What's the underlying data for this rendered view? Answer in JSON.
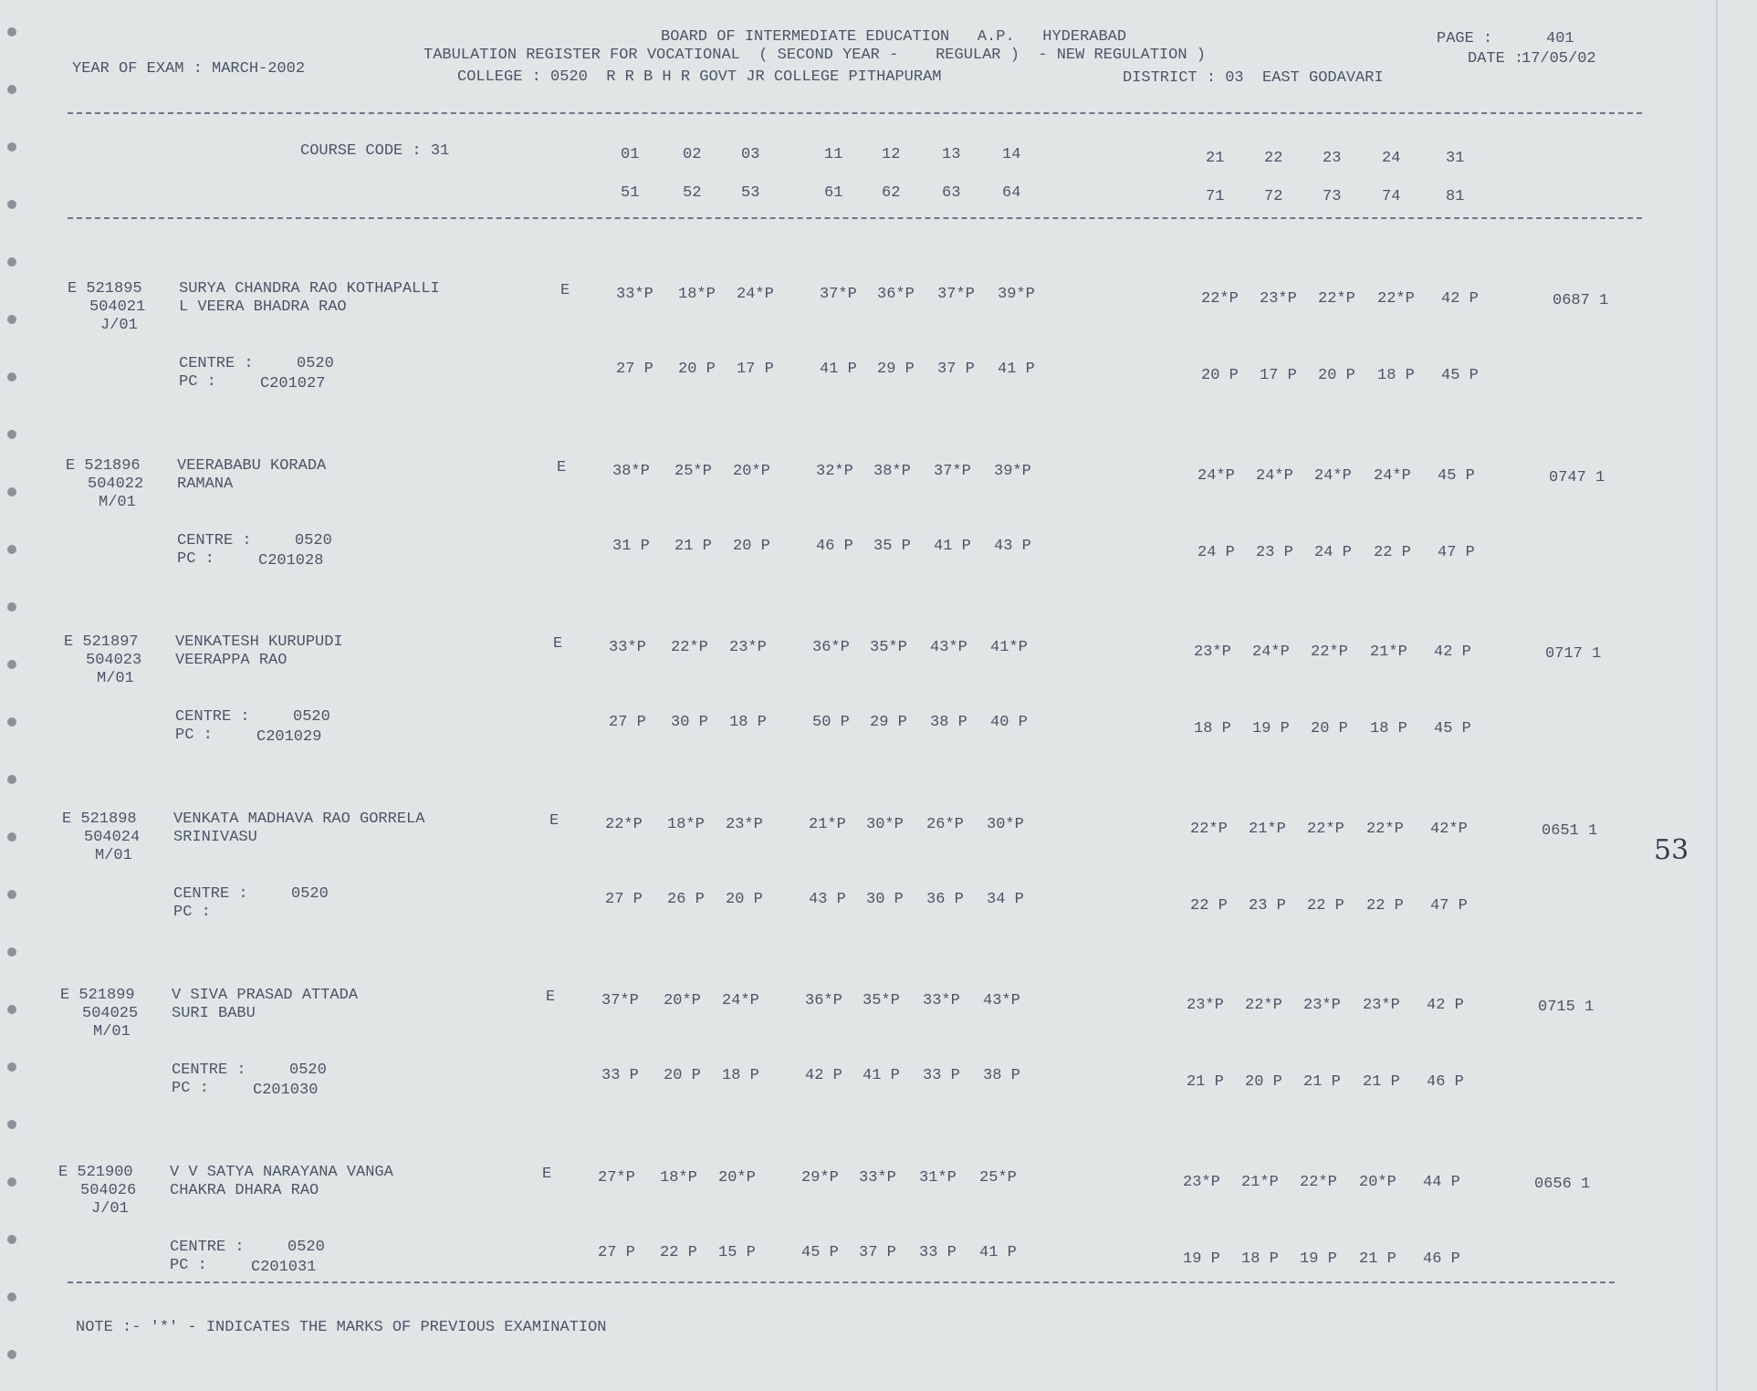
{
  "header": {
    "board": "BOARD OF INTERMEDIATE EDUCATION   A.P.   HYDERABAD",
    "page_label": "PAGE :",
    "page": "401",
    "year": "YEAR OF EXAM : MARCH-2002",
    "register": "TABULATION REGISTER FOR VOCATIONAL  ( SECOND YEAR -    REGULAR )  - NEW REGULATION )",
    "date_label": "DATE :",
    "date": "17/05/02",
    "college": "COLLEGE : 0520  R R B H R GOVT JR COLLEGE PITHAPURAM",
    "district": "DISTRICT : 03  EAST GODAVARI"
  },
  "columns": {
    "course_code": "COURSE CODE : 31",
    "codes1": [
      "01",
      "02",
      "03",
      "11",
      "12",
      "13",
      "14",
      "21",
      "22",
      "23",
      "24",
      "31"
    ],
    "codes2": [
      "51",
      "52",
      "53",
      "61",
      "62",
      "63",
      "64",
      "71",
      "72",
      "73",
      "74",
      "81"
    ]
  },
  "records": [
    {
      "id": "E 521895",
      "code": "504021",
      "group": "J/01",
      "name": "SURYA CHANDRA RAO KOTHAPALLI",
      "father": "L VEERA BHADRA RAO",
      "medium": "E",
      "marks1": [
        "33*P",
        "18*P",
        "24*P",
        "37*P",
        "36*P",
        "37*P",
        "39*P",
        "22*P",
        "23*P",
        "22*P",
        "22*P",
        "42 P"
      ],
      "marks2": [
        "27 P",
        "20 P",
        "17 P",
        "41 P",
        "29 P",
        "37 P",
        "41 P",
        "20 P",
        "17 P",
        "20 P",
        "18 P",
        "45 P"
      ],
      "centre_label": "CENTRE :",
      "centre": "0520",
      "pc_label": "PC :",
      "pc": "C201027",
      "total": "0687 1"
    },
    {
      "id": "E 521896",
      "code": "504022",
      "group": "M/01",
      "name": "VEERABABU KORADA",
      "father": "RAMANA",
      "medium": "E",
      "marks1": [
        "38*P",
        "25*P",
        "20*P",
        "32*P",
        "38*P",
        "37*P",
        "39*P",
        "24*P",
        "24*P",
        "24*P",
        "24*P",
        "45 P"
      ],
      "marks2": [
        "31 P",
        "21 P",
        "20 P",
        "46 P",
        "35 P",
        "41 P",
        "43 P",
        "24 P",
        "23 P",
        "24 P",
        "22 P",
        "47 P"
      ],
      "centre_label": "CENTRE :",
      "centre": "0520",
      "pc_label": "PC :",
      "pc": "C201028",
      "total": "0747 1"
    },
    {
      "id": "E 521897",
      "code": "504023",
      "group": "M/01",
      "name": "VENKATESH KURUPUDI",
      "father": "VEERAPPA RAO",
      "medium": "E",
      "marks1": [
        "33*P",
        "22*P",
        "23*P",
        "36*P",
        "35*P",
        "43*P",
        "41*P",
        "23*P",
        "24*P",
        "22*P",
        "21*P",
        "42 P"
      ],
      "marks2": [
        "27 P",
        "30 P",
        "18 P",
        "50 P",
        "29 P",
        "38 P",
        "40 P",
        "18 P",
        "19 P",
        "20 P",
        "18 P",
        "45 P"
      ],
      "centre_label": "CENTRE :",
      "centre": "0520",
      "pc_label": "PC :",
      "pc": "C201029",
      "total": "0717 1"
    },
    {
      "id": "E 521898",
      "code": "504024",
      "group": "M/01",
      "name": "VENKATA MADHAVA RAO GORRELA",
      "father": "SRINIVASU",
      "medium": "E",
      "marks1": [
        "22*P",
        "18*P",
        "23*P",
        "21*P",
        "30*P",
        "26*P",
        "30*P",
        "22*P",
        "21*P",
        "22*P",
        "22*P",
        "42*P"
      ],
      "marks2": [
        "27 P",
        "26 P",
        "20 P",
        "43 P",
        "30 P",
        "36 P",
        "34 P",
        "22 P",
        "23 P",
        "22 P",
        "22 P",
        "47 P"
      ],
      "centre_label": "CENTRE :",
      "centre": "0520",
      "pc_label": "PC :",
      "total": "0651 1",
      "handwritten": "53"
    },
    {
      "id": "E 521899",
      "code": "504025",
      "group": "M/01",
      "name": "V SIVA PRASAD ATTADA",
      "father": "SURI BABU",
      "medium": "E",
      "marks1": [
        "37*P",
        "20*P",
        "24*P",
        "36*P",
        "35*P",
        "33*P",
        "43*P",
        "23*P",
        "22*P",
        "23*P",
        "23*P",
        "42 P"
      ],
      "marks2": [
        "33 P",
        "20 P",
        "18 P",
        "42 P",
        "41 P",
        "33 P",
        "38 P",
        "21 P",
        "20 P",
        "21 P",
        "21 P",
        "46 P"
      ],
      "centre_label": "CENTRE :",
      "centre": "0520",
      "pc_label": "PC :",
      "pc": "C201030",
      "total": "0715 1"
    },
    {
      "id": "E 521900",
      "code": "504026",
      "group": "J/01",
      "name": "V V SATYA NARAYANA VANGA",
      "father": "CHAKRA DHARA RAO",
      "medium": "E",
      "marks1": [
        "27*P",
        "18*P",
        "20*P",
        "29*P",
        "33*P",
        "31*P",
        "25*P",
        "23*P",
        "21*P",
        "22*P",
        "20*P",
        "44 P"
      ],
      "marks2": [
        "27 P",
        "22 P",
        "15 P",
        "45 P",
        "37 P",
        "33 P",
        "41 P",
        "19 P",
        "18 P",
        "19 P",
        "21 P",
        "46 P"
      ],
      "centre_label": "CENTRE :",
      "centre": "0520",
      "pc_label": "PC :",
      "pc": "C201031",
      "total": "0656 1"
    }
  ],
  "footer": {
    "note": "NOTE :- '*' - INDICATES THE MARKS OF PREVIOUS EXAMINATION"
  }
}
